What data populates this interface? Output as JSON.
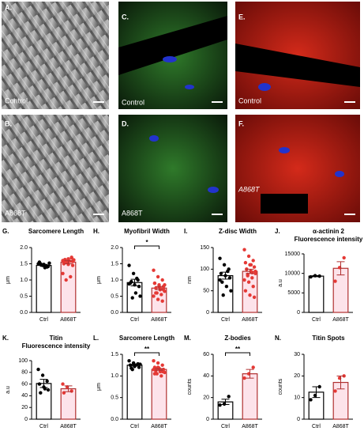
{
  "panels": [
    {
      "letter": "A.",
      "caption": "Control"
    },
    {
      "letter": "C.",
      "caption": "Control"
    },
    {
      "letter": "E.",
      "caption": "Control"
    },
    {
      "letter": "B.",
      "caption": "A868T"
    },
    {
      "letter": "D.",
      "caption": "A868T"
    },
    {
      "letter": "F.",
      "caption": "A868T"
    }
  ],
  "chart_data": [
    {
      "type": "bar",
      "panel": "G.",
      "title": "Sarcomere Length",
      "ylabel": "μm",
      "categories": [
        "Ctrl",
        "A868T"
      ],
      "ylim": [
        0,
        2
      ],
      "yticks": [
        {
          "value": 0,
          "label": "0.0"
        },
        0.5,
        {
          "value": 1,
          "label": "1.0"
        },
        1.5,
        {
          "value": 2,
          "label": "2.0"
        }
      ],
      "values": [
        1.45,
        1.55
      ],
      "errors": [
        0.03,
        0.05
      ],
      "points": [
        [
          1.5,
          1.45,
          1.4,
          1.55,
          1.48,
          1.42,
          1.5,
          1.38,
          1.52,
          1.47,
          1.44
        ],
        [
          1.6,
          1.55,
          1.7,
          1.5,
          1.65,
          1.45,
          1.6,
          1.58,
          1.62,
          1.0,
          1.1,
          1.2,
          1.55,
          1.68,
          1.52,
          1.48,
          1.57,
          1.63
        ]
      ],
      "colors": [
        "#000000",
        "#b03030"
      ],
      "fills": [
        "#ffffff",
        "#fde3ea"
      ],
      "point_colors": [
        "#000000",
        "#e53935"
      ]
    },
    {
      "type": "bar",
      "panel": "H.",
      "title": "Myofibril Width",
      "ylabel": "μm",
      "categories": [
        "Ctrl",
        "A868T"
      ],
      "ylim": [
        0,
        2
      ],
      "yticks": [
        {
          "value": 0,
          "label": "0.0"
        },
        0.5,
        {
          "value": 1,
          "label": "1.0"
        },
        1.5,
        {
          "value": 2,
          "label": "2.0"
        }
      ],
      "values": [
        0.92,
        0.75
      ],
      "errors": [
        0.1,
        0.05
      ],
      "points": [
        [
          1.45,
          1.2,
          1.0,
          0.9,
          0.85,
          0.8,
          0.95,
          0.6,
          0.5,
          0.45,
          1.05,
          0.88
        ],
        [
          1.3,
          1.1,
          1.0,
          0.9,
          0.85,
          0.8,
          0.75,
          0.7,
          0.65,
          0.6,
          0.55,
          0.5,
          0.4,
          0.35,
          0.9,
          0.8,
          0.7,
          0.6,
          0.75,
          0.85
        ]
      ],
      "significance": "*",
      "colors": [
        "#000000",
        "#b03030"
      ],
      "fills": [
        "#ffffff",
        "#fde3ea"
      ],
      "point_colors": [
        "#000000",
        "#e53935"
      ]
    },
    {
      "type": "bar",
      "panel": "I.",
      "title": "Z-disc Width",
      "ylabel": "nm",
      "categories": [
        "Ctrl",
        "A868T"
      ],
      "ylim": [
        0,
        150
      ],
      "yticks": [
        0,
        50,
        100,
        150
      ],
      "values": [
        85,
        95
      ],
      "errors": [
        8,
        5
      ],
      "points": [
        [
          125,
          110,
          100,
          90,
          85,
          80,
          70,
          60,
          50,
          40,
          95,
          75
        ],
        [
          145,
          130,
          120,
          115,
          110,
          105,
          100,
          95,
          90,
          85,
          80,
          75,
          70,
          60,
          50,
          40,
          35,
          100,
          110,
          95,
          88,
          92
        ]
      ],
      "colors": [
        "#000000",
        "#b03030"
      ],
      "fills": [
        "#ffffff",
        "#fde3ea"
      ],
      "point_colors": [
        "#000000",
        "#e53935"
      ]
    },
    {
      "type": "bar",
      "panel": "J.",
      "title": "α-actinin 2",
      "subtitle": "Fluorescence intensity",
      "ylabel": "a.u",
      "categories": [
        "Ctrl",
        "A868T"
      ],
      "ylim": [
        0,
        15000
      ],
      "yticks": [
        0,
        5000,
        10000,
        15000
      ],
      "values": [
        9300,
        11300
      ],
      "errors": [
        150,
        1700
      ],
      "points": [
        [
          9100,
          9400,
          9300
        ],
        [
          8000,
          11500,
          14000
        ]
      ],
      "colors": [
        "#000000",
        "#b03030"
      ],
      "fills": [
        "#ffffff",
        "#fde3ea"
      ],
      "point_colors": [
        "#000000",
        "#e53935"
      ]
    },
    {
      "type": "bar",
      "panel": "K.",
      "title": "Titin",
      "subtitle": "Fluorescence intensity",
      "ylabel": "a.u",
      "categories": [
        "Ctrl",
        "A868T"
      ],
      "ylim": [
        0,
        100
      ],
      "yticks": [
        0,
        20,
        40,
        60,
        80,
        100
      ],
      "values": [
        61,
        52
      ],
      "errors": [
        7,
        5
      ],
      "points": [
        [
          85,
          75,
          65,
          60,
          55,
          50,
          45,
          52
        ],
        [
          60,
          55,
          48,
          45
        ]
      ],
      "colors": [
        "#000000",
        "#b03030"
      ],
      "fills": [
        "#ffffff",
        "#fde3ea"
      ],
      "point_colors": [
        "#000000",
        "#e53935"
      ]
    },
    {
      "type": "bar",
      "panel": "L.",
      "title": "Sarcomere Length",
      "ylabel": "μm",
      "categories": [
        "Ctrl",
        "A868T"
      ],
      "ylim": [
        0,
        1.5
      ],
      "yticks": [
        {
          "value": 0,
          "label": "0.0"
        },
        0.5,
        {
          "value": 1,
          "label": "1.0"
        },
        1.5
      ],
      "values": [
        1.25,
        1.15
      ],
      "errors": [
        0.02,
        0.02
      ],
      "points": [
        [
          1.35,
          1.3,
          1.28,
          1.25,
          1.22,
          1.2,
          1.18,
          1.25,
          1.27,
          1.15
        ],
        [
          1.35,
          1.3,
          1.25,
          1.2,
          1.18,
          1.15,
          1.12,
          1.1,
          1.08,
          1.05,
          1.0,
          1.15,
          1.2,
          1.1,
          1.05,
          1.17
        ]
      ],
      "significance": "**",
      "colors": [
        "#000000",
        "#b03030"
      ],
      "fills": [
        "#ffffff",
        "#fde3ea"
      ],
      "point_colors": [
        "#000000",
        "#e53935"
      ]
    },
    {
      "type": "bar",
      "panel": "M.",
      "title": "Z-bodies",
      "ylabel": "counts",
      "categories": [
        "Ctrl",
        "A868T"
      ],
      "ylim": [
        0,
        60
      ],
      "yticks": [
        0,
        20,
        40,
        60
      ],
      "values": [
        16,
        42
      ],
      "errors": [
        2.5,
        4
      ],
      "points": [
        [
          13,
          14,
          21
        ],
        [
          38,
          42,
          48
        ]
      ],
      "significance": "**",
      "colors": [
        "#000000",
        "#b03030"
      ],
      "fills": [
        "#ffffff",
        "#fde3ea"
      ],
      "point_colors": [
        "#000000",
        "#e53935"
      ]
    },
    {
      "type": "bar",
      "panel": "N.",
      "title": "Titin Spots",
      "ylabel": "counts",
      "categories": [
        "Ctrl",
        "A868T"
      ],
      "ylim": [
        0,
        30
      ],
      "yticks": [
        0,
        10,
        20,
        30
      ],
      "values": [
        12.5,
        17
      ],
      "errors": [
        2.5,
        3
      ],
      "points": [
        [
          9,
          11,
          15
        ],
        [
          13,
          19,
          20
        ]
      ],
      "colors": [
        "#000000",
        "#b03030"
      ],
      "fills": [
        "#ffffff",
        "#fde3ea"
      ],
      "point_colors": [
        "#000000",
        "#e53935"
      ]
    }
  ]
}
